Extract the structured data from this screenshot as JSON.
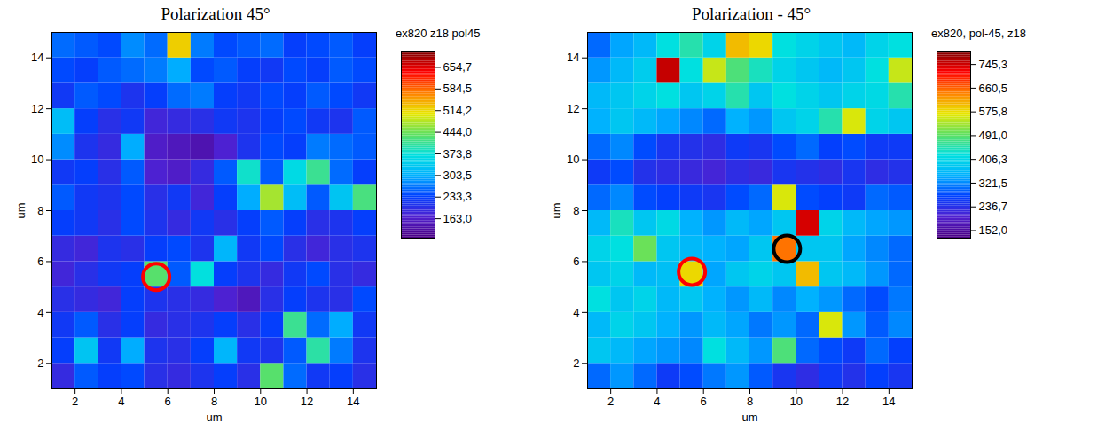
{
  "chart_data": [
    {
      "type": "heatmap",
      "title": "Polarization 45°",
      "x_label": "um",
      "y_label": "um",
      "xlim": [
        1,
        15
      ],
      "ylim": [
        1,
        15
      ],
      "xticks": [
        2,
        4,
        6,
        8,
        10,
        12,
        14
      ],
      "yticks": [
        2,
        4,
        6,
        8,
        10,
        12,
        14
      ],
      "cells": {
        "x": [
          1.5,
          2.5,
          3.5,
          4.5,
          5.5,
          6.5,
          7.5,
          8.5,
          9.5,
          10.5,
          11.5,
          12.5,
          13.5,
          14.5
        ],
        "y": [
          1.5,
          2.5,
          3.5,
          4.5,
          5.5,
          6.5,
          7.5,
          8.5,
          9.5,
          10.5,
          11.5,
          12.5,
          13.5,
          14.5
        ],
        "values": [
          [
            190,
            250,
            230,
            240,
            200,
            190,
            210,
            230,
            200,
            430,
            260,
            220,
            230,
            200
          ],
          [
            230,
            330,
            220,
            300,
            210,
            200,
            230,
            310,
            220,
            210,
            250,
            400,
            270,
            210
          ],
          [
            220,
            250,
            200,
            230,
            190,
            200,
            210,
            230,
            200,
            230,
            410,
            260,
            300,
            220
          ],
          [
            200,
            190,
            180,
            230,
            210,
            200,
            190,
            170,
            150,
            200,
            230,
            210,
            200,
            240
          ],
          [
            180,
            200,
            220,
            230,
            430,
            250,
            370,
            230,
            210,
            190,
            220,
            240,
            200,
            190
          ],
          [
            190,
            180,
            210,
            200,
            230,
            240,
            210,
            310,
            220,
            240,
            200,
            180,
            200,
            210
          ],
          [
            230,
            220,
            200,
            240,
            210,
            190,
            220,
            200,
            230,
            250,
            230,
            200,
            210,
            230
          ],
          [
            250,
            220,
            210,
            240,
            200,
            220,
            180,
            230,
            300,
            470,
            320,
            250,
            330,
            420
          ],
          [
            220,
            230,
            200,
            250,
            170,
            160,
            190,
            250,
            380,
            250,
            360,
            410,
            260,
            230
          ],
          [
            280,
            210,
            190,
            300,
            160,
            150,
            140,
            170,
            210,
            240,
            230,
            270,
            260,
            250
          ],
          [
            320,
            230,
            200,
            220,
            180,
            190,
            200,
            220,
            210,
            230,
            240,
            220,
            210,
            250
          ],
          [
            220,
            250,
            240,
            210,
            230,
            260,
            270,
            230,
            220,
            240,
            230,
            250,
            240,
            220
          ],
          [
            240,
            230,
            250,
            260,
            270,
            300,
            240,
            250,
            230,
            220,
            240,
            230,
            250,
            240
          ],
          [
            260,
            250,
            240,
            280,
            260,
            520,
            270,
            240,
            250,
            260,
            230,
            240,
            250,
            230
          ]
        ]
      },
      "colorbar": {
        "label": "ex820 z18 pol45",
        "lim": [
          100,
          705
        ],
        "ticks": [
          {
            "value": 163.0,
            "label": "163,0"
          },
          {
            "value": 233.3,
            "label": "233,3"
          },
          {
            "value": 303.5,
            "label": "303,5"
          },
          {
            "value": 373.8,
            "label": "373,8"
          },
          {
            "value": 444.0,
            "label": "444,0"
          },
          {
            "value": 514.2,
            "label": "514,2"
          },
          {
            "value": 584.5,
            "label": "584,5"
          },
          {
            "value": 654.7,
            "label": "654,7"
          }
        ]
      },
      "circles": [
        {
          "x": 5.5,
          "y": 5.4,
          "color": "red"
        }
      ]
    },
    {
      "type": "heatmap",
      "title": "Polarization - 45°",
      "x_label": "um",
      "y_label": "um",
      "xlim": [
        1,
        15
      ],
      "ylim": [
        1,
        15
      ],
      "xticks": [
        2,
        4,
        6,
        8,
        10,
        12,
        14
      ],
      "yticks": [
        2,
        4,
        6,
        8,
        10,
        12,
        14
      ],
      "cells": {
        "x": [
          1.5,
          2.5,
          3.5,
          4.5,
          5.5,
          6.5,
          7.5,
          8.5,
          9.5,
          10.5,
          11.5,
          12.5,
          13.5,
          14.5
        ],
        "y": [
          1.5,
          2.5,
          3.5,
          4.5,
          5.5,
          6.5,
          7.5,
          8.5,
          9.5,
          10.5,
          11.5,
          12.5,
          13.5,
          14.5
        ],
        "values": [
          [
            300,
            330,
            300,
            260,
            280,
            310,
            330,
            290,
            250,
            230,
            260,
            240,
            270,
            250
          ],
          [
            380,
            360,
            340,
            330,
            320,
            420,
            360,
            330,
            480,
            300,
            280,
            260,
            300,
            270
          ],
          [
            360,
            400,
            380,
            350,
            330,
            360,
            340,
            310,
            330,
            300,
            560,
            330,
            290,
            320
          ],
          [
            420,
            380,
            400,
            360,
            380,
            350,
            330,
            360,
            320,
            350,
            330,
            300,
            280,
            310
          ],
          [
            380,
            400,
            360,
            370,
            580,
            340,
            380,
            400,
            380,
            600,
            380,
            360,
            330,
            300
          ],
          [
            400,
            420,
            500,
            380,
            360,
            350,
            340,
            380,
            650,
            380,
            380,
            340,
            320,
            300
          ],
          [
            360,
            440,
            380,
            410,
            350,
            330,
            360,
            340,
            380,
            740,
            400,
            360,
            340,
            330
          ],
          [
            300,
            320,
            280,
            270,
            260,
            250,
            280,
            300,
            560,
            280,
            270,
            260,
            300,
            290
          ],
          [
            260,
            280,
            240,
            230,
            220,
            210,
            230,
            220,
            250,
            240,
            230,
            250,
            230,
            240
          ],
          [
            300,
            320,
            280,
            250,
            240,
            230,
            260,
            250,
            280,
            300,
            270,
            280,
            260,
            260
          ],
          [
            350,
            380,
            360,
            340,
            320,
            300,
            350,
            330,
            380,
            400,
            450,
            560,
            400,
            380
          ],
          [
            360,
            380,
            400,
            420,
            380,
            400,
            450,
            380,
            420,
            400,
            380,
            400,
            410,
            450
          ],
          [
            330,
            360,
            390,
            750,
            420,
            550,
            480,
            440,
            400,
            380,
            360,
            380,
            420,
            550
          ],
          [
            300,
            340,
            360,
            420,
            450,
            400,
            600,
            580,
            420,
            400,
            380,
            360,
            400,
            420
          ]
        ]
      },
      "colorbar": {
        "label": "ex820, pol-45, z18",
        "lim": [
          125,
          790
        ],
        "ticks": [
          {
            "value": 152.0,
            "label": "152,0"
          },
          {
            "value": 236.7,
            "label": "236,7"
          },
          {
            "value": 321.5,
            "label": "321,5"
          },
          {
            "value": 406.3,
            "label": "406,3"
          },
          {
            "value": 491.0,
            "label": "491,0"
          },
          {
            "value": 575.8,
            "label": "575,8"
          },
          {
            "value": 660.5,
            "label": "660,5"
          },
          {
            "value": 745.3,
            "label": "745,3"
          }
        ]
      },
      "circles": [
        {
          "x": 5.5,
          "y": 5.6,
          "color": "red"
        },
        {
          "x": 9.6,
          "y": 6.5,
          "color": "black"
        }
      ]
    }
  ]
}
